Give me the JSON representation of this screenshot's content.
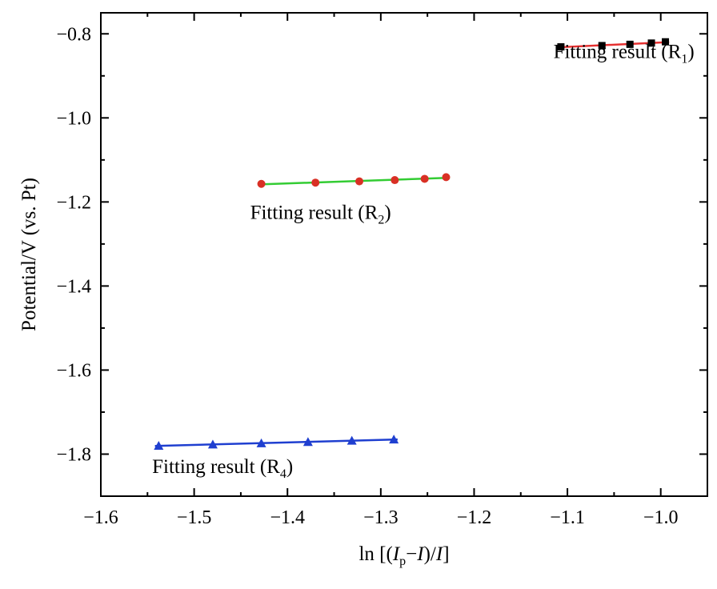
{
  "chart_data": {
    "type": "scatter",
    "xlabel": "ln [(I_p−I)/I]",
    "xlabel_parts": {
      "prefix": "ln [(",
      "i1": "I",
      "sub": "p",
      "minus": "−",
      "i2": "I",
      "mid": ")/",
      "i3": "I",
      "suffix": "]"
    },
    "ylabel": "Potential/V (vs. Pt)",
    "xlim": [
      -1.6,
      -0.95
    ],
    "ylim": [
      -1.9,
      -0.75
    ],
    "x_ticks": [
      -1.6,
      -1.5,
      -1.4,
      -1.3,
      -1.2,
      -1.1,
      -1.0
    ],
    "x_tick_labels": [
      "−1.6",
      "−1.5",
      "−1.4",
      "−1.3",
      "−1.2",
      "−1.1",
      "−1.0"
    ],
    "y_ticks": [
      -1.8,
      -1.6,
      -1.4,
      -1.2,
      -1.0,
      -0.8
    ],
    "y_tick_labels": [
      "−1.8",
      "−1.6",
      "−1.4",
      "−1.2",
      "−1.0",
      "−0.8"
    ],
    "grid": false,
    "series": [
      {
        "name": "R1",
        "marker": "square",
        "marker_color": "#000000",
        "line_color": "#e53030",
        "x": [
          -1.107,
          -1.063,
          -1.033,
          -1.01,
          -0.995
        ],
        "y": [
          -0.831,
          -0.828,
          -0.825,
          -0.822,
          -0.819
        ],
        "annotation": {
          "prefix": "Fitting result (R",
          "sub": "1",
          "suffix": ")",
          "x": -1.115,
          "y": -0.858
        }
      },
      {
        "name": "R2",
        "marker": "circle",
        "marker_color": "#d93025",
        "line_color": "#33cc33",
        "x": [
          -1.428,
          -1.37,
          -1.323,
          -1.285,
          -1.253,
          -1.23
        ],
        "y": [
          -1.157,
          -1.154,
          -1.151,
          -1.148,
          -1.145,
          -1.141
        ],
        "annotation": {
          "prefix": "Fitting result (R",
          "sub": "2",
          "suffix": ")",
          "x": -1.44,
          "y": -1.24
        }
      },
      {
        "name": "R4",
        "marker": "triangle",
        "marker_color": "#1f3fd0",
        "line_color": "#1f3fd0",
        "x": [
          -1.538,
          -1.48,
          -1.428,
          -1.378,
          -1.331,
          -1.286
        ],
        "y": [
          -1.78,
          -1.777,
          -1.774,
          -1.771,
          -1.768,
          -1.765
        ],
        "annotation": {
          "prefix": "Fitting result (R",
          "sub": "4",
          "suffix": ")",
          "x": -1.545,
          "y": -1.845
        }
      }
    ]
  }
}
